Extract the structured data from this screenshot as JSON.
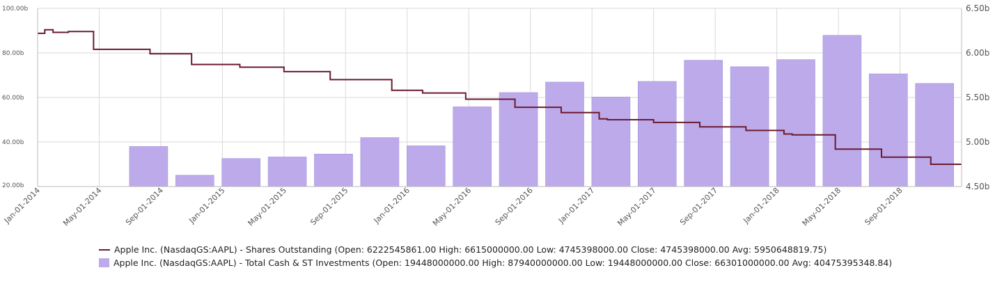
{
  "chart_data": {
    "type": "bar+line",
    "x_labels": [
      "Jan-01-2014",
      "May-01-2014",
      "Sep-01-2014",
      "Jan-01-2015",
      "May-01-2015",
      "Sep-01-2015",
      "Jan-01-2016",
      "May-01-2016",
      "Sep-01-2016",
      "Jan-01-2017",
      "May-01-2017",
      "Sep-01-2017",
      "Jan-01-2018",
      "May-01-2018",
      "Sep-01-2018"
    ],
    "y_left": {
      "ticks": [
        "100.00b",
        "80.00b",
        "60.00b",
        "40.00b",
        "20.00b"
      ],
      "range": [
        20,
        100
      ],
      "unit": "b"
    },
    "y_right": {
      "ticks": [
        "6.50b",
        "6.00b",
        "5.50b",
        "5.00b",
        "4.50b"
      ],
      "range": [
        4.5,
        6.5
      ],
      "unit": "b"
    },
    "grid": true,
    "legend_position": "bottom",
    "series": [
      {
        "name": "Apple Inc. (NasdaqGS:AAPL) - Shares Outstanding (Open: 6222545861.00 High: 6615000000.00 Low: 4745398000.00 Close: 4745398000.00 Avg: 5950648819.75)",
        "type": "step-line",
        "axis": "right",
        "color": "#6b1a2e",
        "points": [
          [
            "Jan-01-2014",
            6.22
          ],
          [
            "Jan-15-2014",
            6.26
          ],
          [
            "Feb-01-2014",
            6.23
          ],
          [
            "Mar-01-2014",
            6.24
          ],
          [
            "Apr-20-2014",
            6.04
          ],
          [
            "Aug-10-2014",
            5.99
          ],
          [
            "Nov-01-2014",
            5.87
          ],
          [
            "Feb-05-2015",
            5.84
          ],
          [
            "May-01-2015",
            5.79
          ],
          [
            "Aug-01-2015",
            5.7
          ],
          [
            "Dec-01-2015",
            5.58
          ],
          [
            "Feb-01-2016",
            5.55
          ],
          [
            "Apr-25-2016",
            5.48
          ],
          [
            "Aug-01-2016",
            5.39
          ],
          [
            "Nov-01-2016",
            5.33
          ],
          [
            "Jan-15-2017",
            5.26
          ],
          [
            "Feb-01-2017",
            5.25
          ],
          [
            "May-01-2017",
            5.22
          ],
          [
            "Aug-01-2017",
            5.17
          ],
          [
            "Nov-01-2017",
            5.13
          ],
          [
            "Jan-15-2018",
            5.09
          ],
          [
            "Feb-01-2018",
            5.08
          ],
          [
            "Apr-25-2018",
            4.92
          ],
          [
            "Jul-25-2018",
            4.83
          ],
          [
            "Nov-01-2018",
            4.75
          ],
          [
            "Jan-01-2019",
            4.75
          ]
        ]
      },
      {
        "name": "Apple Inc. (NasdaqGS:AAPL) - Total Cash & ST Investments (Open: 19448000000.00 High: 87940000000.00 Low: 19448000000.00 Close: 66301000000.00 Avg: 40475395348.84)",
        "type": "bar",
        "axis": "left",
        "color": "#bcaaea",
        "values": [
          19.45,
          38.0,
          25.1,
          32.6,
          33.3,
          34.6,
          42.0,
          38.3,
          55.8,
          62.2,
          66.9,
          60.2,
          67.2,
          76.7,
          73.8,
          77.0,
          87.9,
          70.6,
          66.3
        ]
      }
    ]
  }
}
